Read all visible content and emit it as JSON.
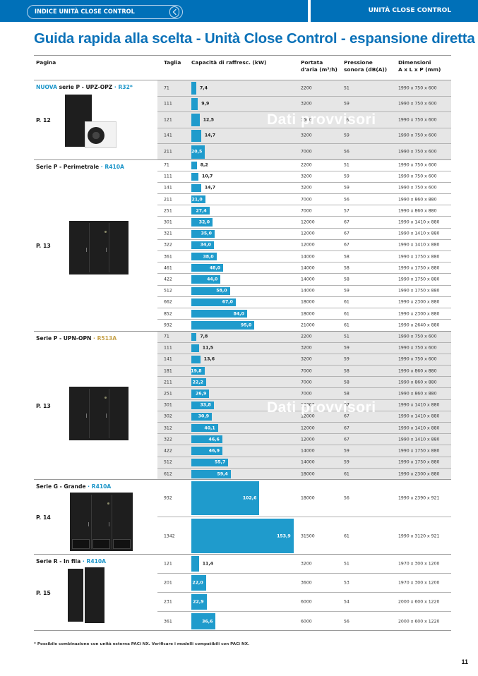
{
  "header": {
    "index_label": "INDICE UNITÀ CLOSE CONTROL",
    "section_label": "UNITÀ CLOSE CONTROL",
    "back_icon": "chevron-left-icon"
  },
  "title": "Guida rapida alla scelta - Unità Close Control - espansione diretta",
  "columns": {
    "pagina": "Pagina",
    "taglia": "Taglia",
    "capacita": "Capacità di raffresc. (kW)",
    "portata_1": "Portata",
    "portata_2": "d'aria (m³/h)",
    "pressione_1": "Pressione",
    "pressione_2": "sonora (dB(A))",
    "dimensioni_1": "Dimensioni",
    "dimensioni_2": "A x L x P (mm)"
  },
  "watermark": "Dati provvisori",
  "colors": {
    "accent": "#0070b8",
    "bar": "#1f9bcc",
    "refrigerant_blue": "#1b95c9",
    "refrigerant_gold": "#c7a24a",
    "shaded_row": "#e6e6e6"
  },
  "groups": [
    {
      "new_tag": "NUOVA",
      "name": " serie P - UPZ-OPZ",
      "sep": " · ",
      "refrigerant": "R32*",
      "page": "P. 12",
      "shaded": true,
      "rows": [
        {
          "taglia": "71",
          "kw": 7.4,
          "kw_label": "7,4",
          "portata": "2200",
          "db": "51",
          "dim": "1990 x 750 x 600"
        },
        {
          "taglia": "111",
          "kw": 9.9,
          "kw_label": "9,9",
          "portata": "3200",
          "db": "59",
          "dim": "1990 x 750 x 600"
        },
        {
          "taglia": "121",
          "kw": 12.5,
          "kw_label": "12,5",
          "portata": "3500",
          "db": "59",
          "dim": "1990 x 750 x 600"
        },
        {
          "taglia": "141",
          "kw": 14.7,
          "kw_label": "14,7",
          "portata": "3200",
          "db": "59",
          "dim": "1990 x 750 x 600"
        },
        {
          "taglia": "211",
          "kw": 20.5,
          "kw_label": "20,5",
          "portata": "7000",
          "db": "56",
          "dim": "1990 x 750 x 600"
        }
      ]
    },
    {
      "new_tag": "",
      "name": "Serie P - Perimetrale",
      "sep": " · ",
      "refrigerant": "R410A",
      "page": "P. 13",
      "shaded": false,
      "rows": [
        {
          "taglia": "71",
          "kw": 8.2,
          "kw_label": "8,2",
          "portata": "2200",
          "db": "51",
          "dim": "1990 x 750 x 600"
        },
        {
          "taglia": "111",
          "kw": 10.7,
          "kw_label": "10,7",
          "portata": "3200",
          "db": "59",
          "dim": "1990 x 750 x 600"
        },
        {
          "taglia": "141",
          "kw": 14.7,
          "kw_label": "14,7",
          "portata": "3200",
          "db": "59",
          "dim": "1990 x 750 x 600"
        },
        {
          "taglia": "211",
          "kw": 21.0,
          "kw_label": "21,0",
          "portata": "7000",
          "db": "56",
          "dim": "1990 x 860 x 880"
        },
        {
          "taglia": "251",
          "kw": 27.4,
          "kw_label": "27,4",
          "portata": "7000",
          "db": "57",
          "dim": "1990 x 860 x 880"
        },
        {
          "taglia": "301",
          "kw": 32.0,
          "kw_label": "32,0",
          "portata": "12000",
          "db": "67",
          "dim": "1990 x 1410 x 880"
        },
        {
          "taglia": "321",
          "kw": 35.0,
          "kw_label": "35,0",
          "portata": "12000",
          "db": "67",
          "dim": "1990 x 1410 x 880"
        },
        {
          "taglia": "322",
          "kw": 34.0,
          "kw_label": "34,0",
          "portata": "12000",
          "db": "67",
          "dim": "1990 x 1410 x 880"
        },
        {
          "taglia": "361",
          "kw": 38.0,
          "kw_label": "38,0",
          "portata": "14000",
          "db": "58",
          "dim": "1990 x 1750 x 880"
        },
        {
          "taglia": "461",
          "kw": 48.0,
          "kw_label": "48,0",
          "portata": "14000",
          "db": "58",
          "dim": "1990 x 1750 x 880"
        },
        {
          "taglia": "422",
          "kw": 44.0,
          "kw_label": "44,0",
          "portata": "14000",
          "db": "58",
          "dim": "1990 x 1750 x 880"
        },
        {
          "taglia": "512",
          "kw": 58.0,
          "kw_label": "58,0",
          "portata": "14000",
          "db": "59",
          "dim": "1990 x 1750 x 880"
        },
        {
          "taglia": "662",
          "kw": 67.0,
          "kw_label": "67,0",
          "portata": "18000",
          "db": "61",
          "dim": "1990 x 2300 x 880"
        },
        {
          "taglia": "852",
          "kw": 84.0,
          "kw_label": "84,0",
          "portata": "18000",
          "db": "61",
          "dim": "1990 x 2300 x 880"
        },
        {
          "taglia": "932",
          "kw": 95.0,
          "kw_label": "95,0",
          "portata": "21000",
          "db": "61",
          "dim": "1990 x 2640 x 880"
        }
      ]
    },
    {
      "new_tag": "",
      "name": "Serie P - UPN-OPN",
      "sep": " · ",
      "refrigerant": "R513A",
      "refrigerant_gold": true,
      "page": "P. 13",
      "shaded": true,
      "rows": [
        {
          "taglia": "71",
          "kw": 7.8,
          "kw_label": "7,8",
          "portata": "2200",
          "db": "51",
          "dim": "1990 x 750 x 600"
        },
        {
          "taglia": "111",
          "kw": 11.5,
          "kw_label": "11,5",
          "portata": "3200",
          "db": "59",
          "dim": "1990 x 750 x 600"
        },
        {
          "taglia": "141",
          "kw": 13.6,
          "kw_label": "13,6",
          "portata": "3200",
          "db": "59",
          "dim": "1990 x 750 x 600"
        },
        {
          "taglia": "181",
          "kw": 19.8,
          "kw_label": "19,8",
          "portata": "7000",
          "db": "58",
          "dim": "1990 x 860 x 880"
        },
        {
          "taglia": "211",
          "kw": 22.2,
          "kw_label": "22,2",
          "portata": "7000",
          "db": "58",
          "dim": "1990 x 860 x 880"
        },
        {
          "taglia": "251",
          "kw": 26.9,
          "kw_label": "26,9",
          "portata": "7000",
          "db": "58",
          "dim": "1990 x 860 x 880"
        },
        {
          "taglia": "301",
          "kw": 33.8,
          "kw_label": "33,8",
          "portata": "12000",
          "db": "67",
          "dim": "1990 x 1410 x 880"
        },
        {
          "taglia": "302",
          "kw": 30.9,
          "kw_label": "30,9",
          "portata": "12000",
          "db": "67",
          "dim": "1990 x 1410 x 880"
        },
        {
          "taglia": "312",
          "kw": 40.1,
          "kw_label": "40,1",
          "portata": "12000",
          "db": "67",
          "dim": "1990 x 1410 x 880"
        },
        {
          "taglia": "322",
          "kw": 46.6,
          "kw_label": "46,6",
          "portata": "12000",
          "db": "67",
          "dim": "1990 x 1410 x 880"
        },
        {
          "taglia": "422",
          "kw": 46.9,
          "kw_label": "46,9",
          "portata": "14000",
          "db": "59",
          "dim": "1990 x 1750 x 880"
        },
        {
          "taglia": "512",
          "kw": 55.7,
          "kw_label": "55,7",
          "portata": "14000",
          "db": "59",
          "dim": "1990 x 1750 x 880"
        },
        {
          "taglia": "612",
          "kw": 59.4,
          "kw_label": "59,4",
          "portata": "18000",
          "db": "61",
          "dim": "1990 x 2300 x 880"
        }
      ]
    },
    {
      "new_tag": "",
      "name": "Serie G - Grande",
      "sep": " · ",
      "refrigerant": "R410A",
      "page": "P. 14",
      "shaded": false,
      "rows": [
        {
          "taglia": "932",
          "kw": 102.6,
          "kw_label": "102,6",
          "portata": "18000",
          "db": "56",
          "dim": "1990 x 2390 x 921"
        },
        {
          "taglia": "1342",
          "kw": 153.9,
          "kw_label": "153,9",
          "portata": "31500",
          "db": "61",
          "dim": "1990 x 3120 x 921"
        }
      ]
    },
    {
      "new_tag": "",
      "name": "Serie R - In fila",
      "sep": " · ",
      "refrigerant": "R410A",
      "page": "P. 15",
      "shaded": false,
      "rows": [
        {
          "taglia": "121",
          "kw": 11.4,
          "kw_label": "11,4",
          "portata": "3200",
          "db": "51",
          "dim": "1970 x 300 x 1200"
        },
        {
          "taglia": "201",
          "kw": 22.0,
          "kw_label": "22,0",
          "portata": "3600",
          "db": "53",
          "dim": "1970 x 300 x 1200"
        },
        {
          "taglia": "231",
          "kw": 22.9,
          "kw_label": "22,9",
          "portata": "6000",
          "db": "54",
          "dim": "2000 x 600 x 1220"
        },
        {
          "taglia": "361",
          "kw": 36.6,
          "kw_label": "36,6",
          "portata": "6000",
          "db": "56",
          "dim": "2000 x 600 x 1220"
        }
      ]
    }
  ],
  "footnote": "* Possibile combinazione con unità esterna PACi NX. Verificare i modelli compatibili con PACi NX.",
  "page_number": "11"
}
